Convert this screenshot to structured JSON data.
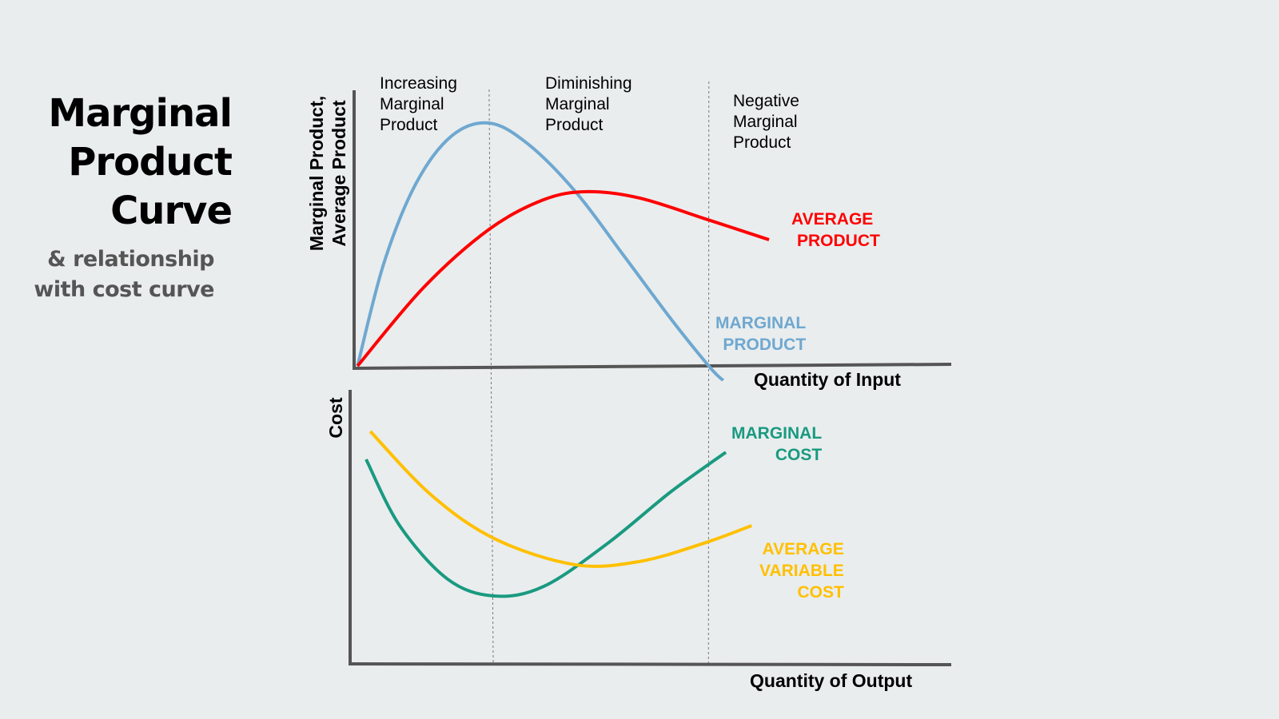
{
  "title_lines": [
    "Marginal",
    "Product",
    "Curve"
  ],
  "subtitle_lines": [
    "& relationship",
    "with cost curve"
  ],
  "phases": [
    {
      "lines": [
        "Increasing",
        "Marginal",
        "Product"
      ]
    },
    {
      "lines": [
        "Diminishing",
        "Marginal",
        "Product"
      ]
    },
    {
      "lines": [
        "Negative",
        "Marginal",
        "Product"
      ]
    }
  ],
  "chart_data": [
    {
      "type": "line",
      "ylabel_lines": [
        "Marginal Product,",
        "Average Product"
      ],
      "xlabel": "Quantity of Input",
      "xlim": [
        0,
        100
      ],
      "ylim": [
        0,
        100
      ],
      "grid": false,
      "phase_dividers_x": [
        22.4,
        59.3
      ],
      "series": [
        {
          "name_lines": [
            "MARGINAL",
            "PRODUCT"
          ],
          "color": "#6fa8d0",
          "x": [
            0.3,
            4.7,
            10.1,
            16.1,
            22.4,
            28.9,
            36.9,
            45,
            53,
            59.5,
            61.7
          ],
          "y": [
            0.6,
            41.9,
            74.2,
            93.5,
            98.7,
            90.3,
            71,
            45.2,
            19.4,
            0,
            -5.2
          ]
        },
        {
          "name_lines": [
            "AVERAGE",
            "PRODUCT"
          ],
          "color": "#ff0000",
          "x": [
            0.3,
            11.4,
            22.4,
            31.5,
            38.9,
            47.7,
            59.1,
            69.4
          ],
          "y": [
            0.6,
            32.3,
            55.8,
            67.7,
            71,
            68.4,
            59.7,
            51.6
          ]
        }
      ]
    },
    {
      "type": "line",
      "ylabel_lines": [
        "Cost"
      ],
      "xlabel": "Quantity of Output",
      "xlim": [
        0,
        100
      ],
      "ylim": [
        0,
        100
      ],
      "grid": false,
      "phase_dividers_x": [
        23.6,
        59.5
      ],
      "series": [
        {
          "name_lines": [
            "MARGINAL",
            "COST"
          ],
          "color": "#1a9a80",
          "x": [
            2.4,
            8,
            16,
            23.7,
            32,
            42.7,
            53.3,
            62.4
          ],
          "y": [
            75,
            50.6,
            30.9,
            24.7,
            28.2,
            44.1,
            63.2,
            77.6
          ]
        },
        {
          "name_lines": [
            "AVERAGE",
            "VARIABLE",
            "COST"
          ],
          "color": "#ffc000",
          "x": [
            3.1,
            13.3,
            24,
            37.3,
            48,
            58.7,
            66.7
          ],
          "y": [
            85.3,
            61.8,
            45.6,
            36.2,
            37.4,
            44.1,
            50.6
          ]
        }
      ]
    }
  ]
}
